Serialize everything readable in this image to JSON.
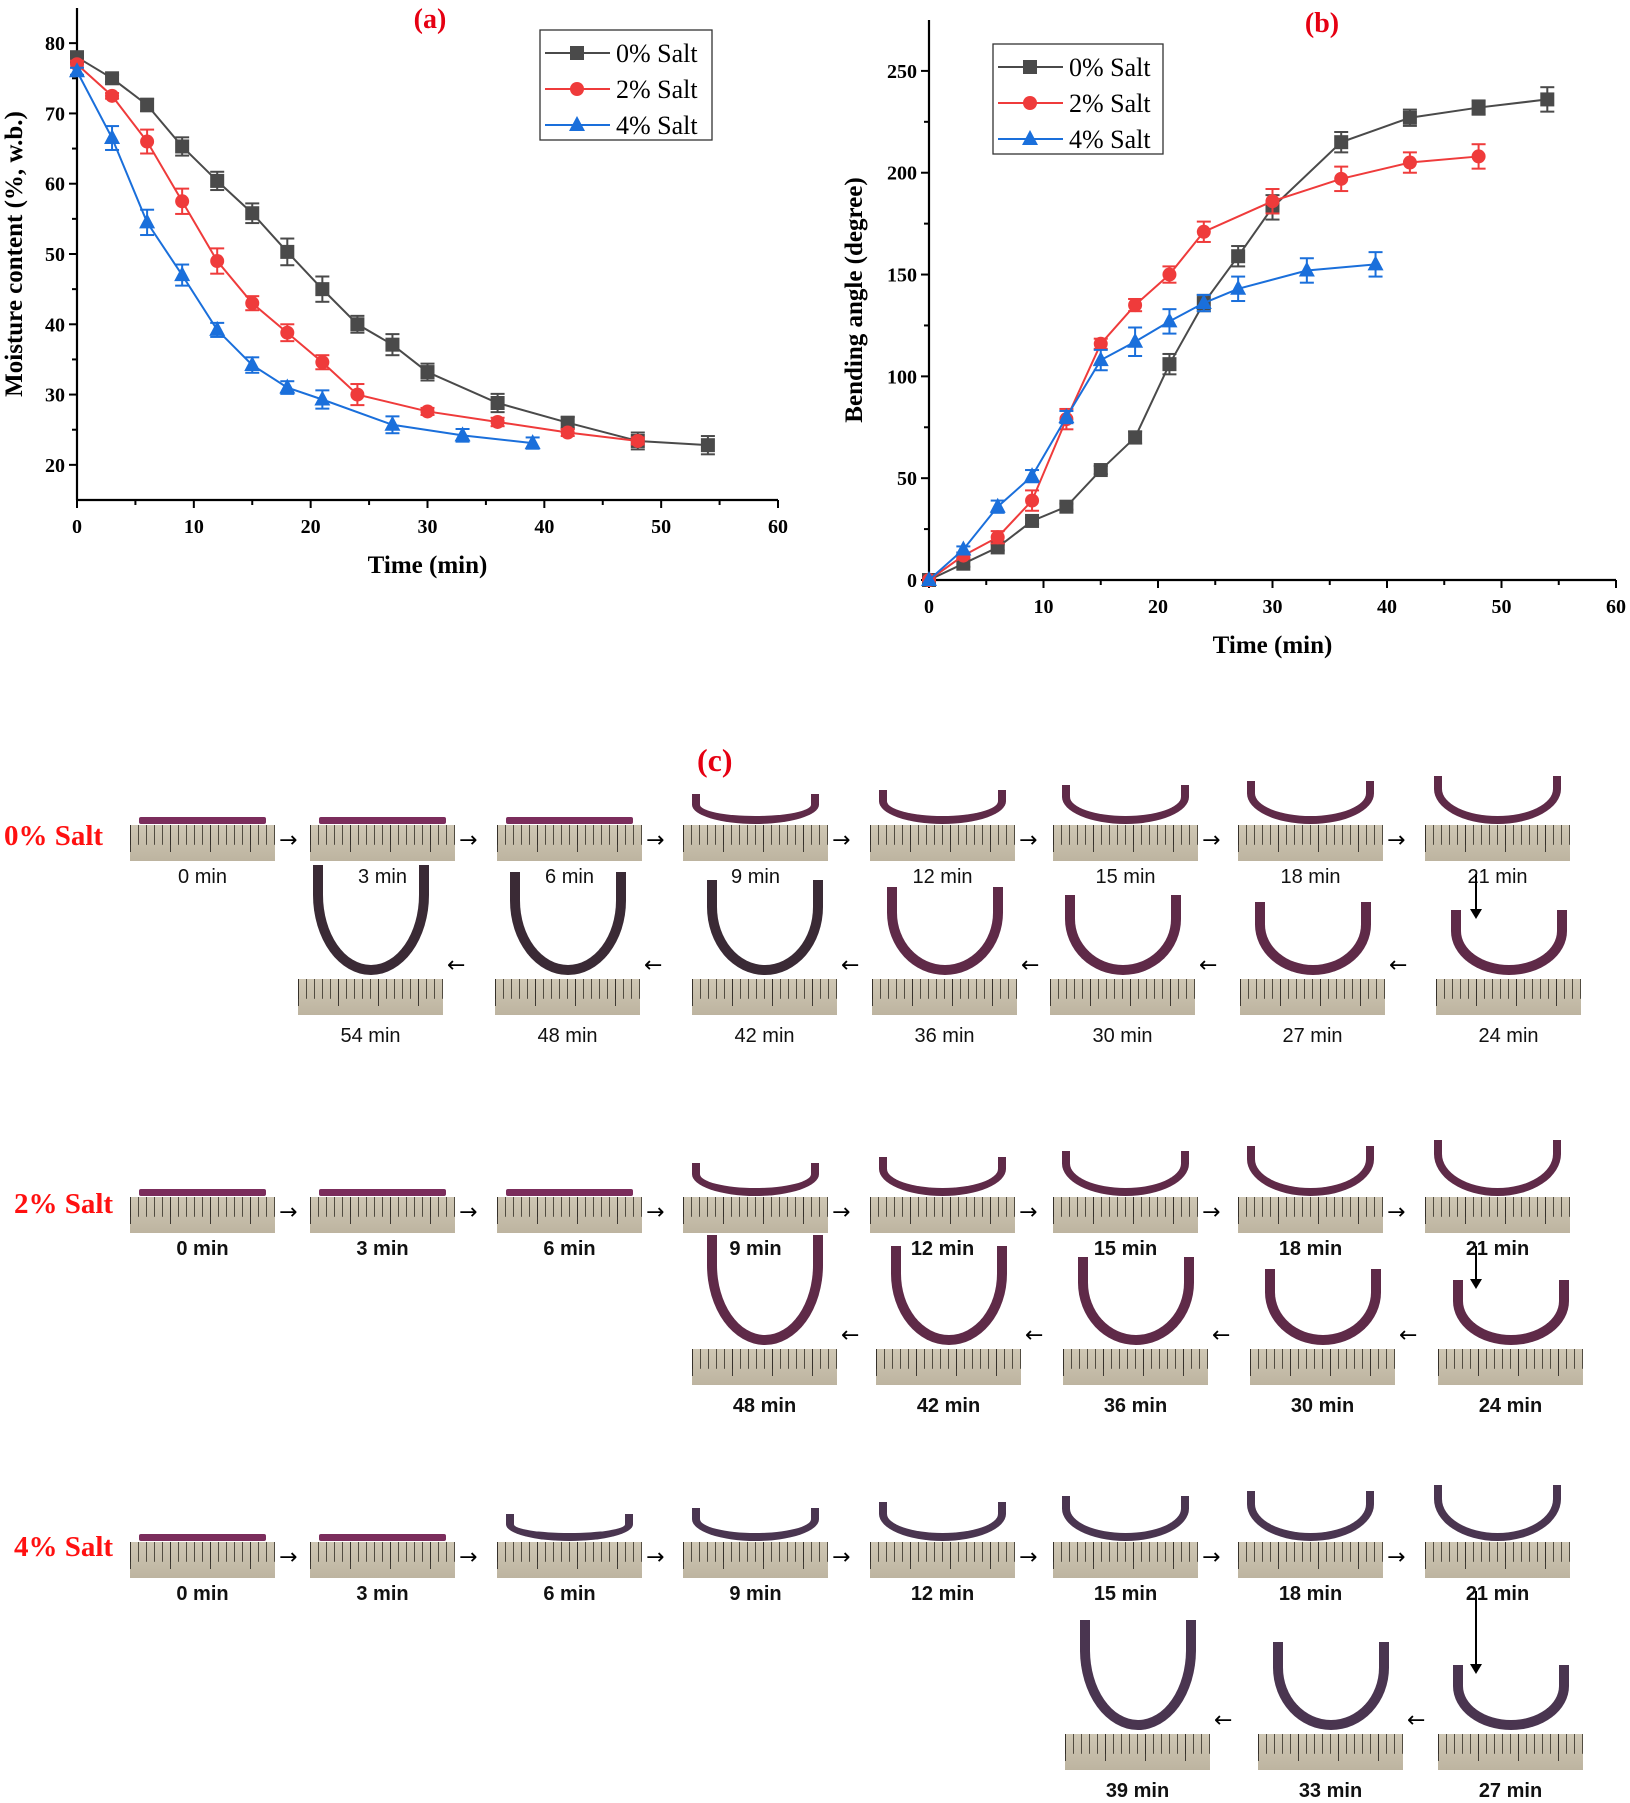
{
  "chart_data": [
    {
      "type": "line",
      "panel": "(a)",
      "title": "(a)",
      "xlabel": "Time (min)",
      "ylabel": "Moisture content (%,  w.b.)",
      "xlim": [
        0,
        60
      ],
      "ylim": [
        15,
        85
      ],
      "xticks": [
        0,
        10,
        20,
        30,
        40,
        50,
        60
      ],
      "yticks": [
        20,
        30,
        40,
        50,
        60,
        70,
        80
      ],
      "legend_position": "top-right",
      "grid": false,
      "series": [
        {
          "name": "0% Salt",
          "color": "#4a4a4a",
          "marker": "square",
          "x": [
            0,
            3,
            6,
            9,
            12,
            15,
            18,
            21,
            24,
            27,
            30,
            36,
            42,
            48,
            54
          ],
          "y": [
            78.0,
            75.0,
            71.2,
            65.3,
            60.4,
            55.8,
            50.3,
            45.0,
            40.0,
            37.1,
            33.2,
            28.8,
            26.0,
            23.4,
            22.8
          ],
          "err": [
            0.6,
            0.5,
            0.9,
            1.3,
            1.3,
            1.4,
            1.9,
            1.8,
            1.2,
            1.5,
            1.2,
            1.3,
            0.8,
            1.2,
            1.3
          ]
        },
        {
          "name": "2% Salt",
          "color": "#ef3b3b",
          "marker": "circle",
          "x": [
            0,
            3,
            6,
            9,
            12,
            15,
            18,
            21,
            24,
            30,
            36,
            42,
            48
          ],
          "y": [
            77.0,
            72.5,
            66.0,
            57.5,
            49.0,
            43.0,
            38.8,
            34.6,
            30.0,
            27.6,
            26.1,
            24.6,
            23.4
          ],
          "err": [
            0.5,
            0.4,
            1.7,
            1.8,
            1.8,
            1.0,
            1.2,
            1.0,
            1.5,
            0.5,
            0.6,
            0.5,
            0.5
          ]
        },
        {
          "name": "4% Salt",
          "color": "#1a6fdb",
          "marker": "triangle",
          "x": [
            0,
            3,
            6,
            9,
            12,
            15,
            18,
            21,
            27,
            33,
            39
          ],
          "y": [
            76.0,
            66.5,
            54.5,
            47.0,
            39.2,
            34.2,
            31.0,
            29.3,
            25.7,
            24.2,
            23.1
          ],
          "err": [
            0.5,
            1.7,
            1.8,
            1.5,
            1.0,
            1.1,
            0.9,
            1.3,
            1.2,
            0.9,
            0.8
          ]
        }
      ]
    },
    {
      "type": "line",
      "panel": "(b)",
      "title": "(b)",
      "xlabel": "Time (min)",
      "ylabel": "Bending angle (degree)",
      "xlim": [
        0,
        60
      ],
      "ylim": [
        0,
        275
      ],
      "xticks": [
        0,
        10,
        20,
        30,
        40,
        50,
        60
      ],
      "yticks": [
        0,
        50,
        100,
        150,
        200,
        250
      ],
      "legend_position": "top-left",
      "grid": false,
      "series": [
        {
          "name": "0% Salt",
          "color": "#4a4a4a",
          "marker": "square",
          "x": [
            0,
            3,
            6,
            9,
            12,
            15,
            18,
            21,
            24,
            27,
            30,
            36,
            42,
            48,
            54
          ],
          "y": [
            0,
            8,
            16,
            29,
            36,
            54,
            70,
            106,
            136,
            159,
            183,
            215,
            227,
            232,
            236
          ],
          "err": [
            0,
            1.5,
            1.5,
            1.5,
            1.5,
            2,
            3,
            5,
            4,
            5,
            6,
            5,
            4,
            3.5,
            6
          ]
        },
        {
          "name": "2% Salt",
          "color": "#ef3b3b",
          "marker": "circle",
          "x": [
            0,
            3,
            6,
            9,
            12,
            15,
            18,
            21,
            24,
            30,
            36,
            42,
            48
          ],
          "y": [
            0,
            12,
            21,
            39,
            79,
            116,
            135,
            150,
            171,
            186,
            197,
            205,
            208
          ],
          "err": [
            0,
            1.5,
            3,
            5,
            5,
            2.5,
            3,
            4,
            5,
            6,
            6,
            5,
            6
          ]
        },
        {
          "name": "4% Salt",
          "color": "#1a6fdb",
          "marker": "triangle",
          "x": [
            0,
            3,
            6,
            9,
            12,
            15,
            18,
            21,
            24,
            27,
            33,
            39
          ],
          "y": [
            0,
            15,
            36,
            51,
            80,
            108,
            117,
            127,
            136,
            143,
            152,
            155
          ],
          "err": [
            0,
            1.5,
            3,
            3,
            3,
            5,
            7,
            6,
            4,
            6,
            6,
            6
          ]
        }
      ]
    }
  ],
  "panel_c": {
    "title": "(c)",
    "groups": [
      {
        "label": "0% Salt",
        "top_row": [
          "0 min",
          "3 min",
          "6 min",
          "9 min",
          "12 min",
          "15 min",
          "18 min",
          "21 min"
        ],
        "bottom_row": [
          "54 min",
          "48 min",
          "42 min",
          "36 min",
          "30 min",
          "27 min",
          "24 min"
        ]
      },
      {
        "label": "2% Salt",
        "top_row": [
          "0 min",
          "3 min",
          "6 min",
          "9 min",
          "12 min",
          "15 min",
          "18 min",
          "21 min"
        ],
        "bottom_row": [
          "48 min",
          "42 min",
          "36 min",
          "30 min",
          "24 min"
        ]
      },
      {
        "label": "4% Salt",
        "top_row": [
          "0 min",
          "3 min",
          "6 min",
          "9 min",
          "12 min",
          "15 min",
          "18 min",
          "21 min"
        ],
        "bottom_row": [
          "39 min",
          "33 min",
          "27 min"
        ]
      }
    ]
  }
}
